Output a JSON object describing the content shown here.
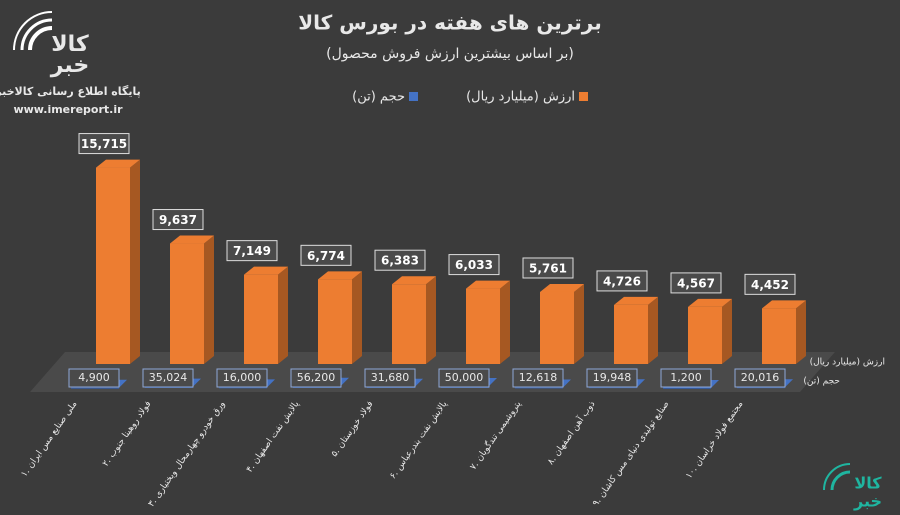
{
  "brand": {
    "top": "کالا",
    "bottom": "خبر",
    "caption": "پایگاه اطلاع رسانی کالاخبر",
    "url": "www.imereport.ir"
  },
  "chart_data": {
    "type": "bar3d",
    "title": "برترین های هفته در بورس کالا",
    "subtitle": "(بر اساس بیشترین ارزش فروش محصول)",
    "categories": [
      "۱. ملی صنایع مس ایران",
      "۲. فولاد روهینا جنوب",
      "۳. ورق خودرو چهارمحال وبختیاری",
      "۴. پالایش نفت اصفهان",
      "۵. فولاد خوزستان",
      "۶. پالایش نفت بندرعباس",
      "۷. پتروشیمی تندگویان",
      "۸. ذوب آهن اصفهان",
      "۹. صنایع تولیدی دنیای مس کاشان",
      "۱۰. مجتمع فولاد خراسان"
    ],
    "series": [
      {
        "name": "ارزش (میلیارد ریال)",
        "color": "#ed7d31",
        "values": [
          15715,
          9637,
          7149,
          6774,
          6383,
          6033,
          5761,
          4726,
          4567,
          4452
        ],
        "value_labels": [
          "15,715",
          "9,637",
          "7,149",
          "6,774",
          "6,383",
          "6,033",
          "5,761",
          "4,726",
          "4,567",
          "4,452"
        ]
      },
      {
        "name": "حجم (تن)",
        "color": "#4472c4",
        "axis": "y2",
        "values": [
          4900,
          35024,
          16000,
          56200,
          31680,
          50000,
          12618,
          19948,
          1200,
          20016
        ],
        "value_labels": [
          "4,900",
          "35,024",
          "16,000",
          "56,200",
          "31,680",
          "50,000",
          "12,618",
          "19,948",
          "1,200",
          "20,016"
        ]
      }
    ],
    "ylim": [
      0,
      16000
    ],
    "y2lim": [
      0,
      5000000
    ],
    "legend": "top"
  }
}
